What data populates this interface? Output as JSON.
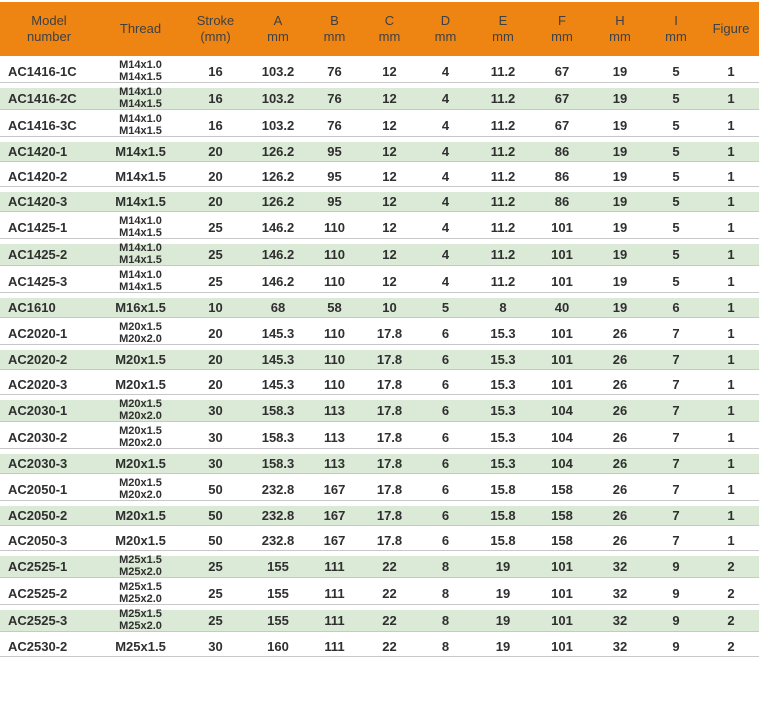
{
  "colors": {
    "header_bg": "#EE8512",
    "header_text": "#3e4044",
    "row_bg": "#ffffff",
    "row_alt_bg": "#dbead6",
    "body_text": "#2f2f2f",
    "separator": "#c8c8c8"
  },
  "table": {
    "columns": [
      {
        "key": "model",
        "label_lines": [
          "Model",
          "number"
        ]
      },
      {
        "key": "thread",
        "label_lines": [
          "Thread"
        ]
      },
      {
        "key": "stroke",
        "label_lines": [
          "Stroke",
          "(mm)"
        ]
      },
      {
        "key": "a",
        "label_lines": [
          "A",
          "mm"
        ]
      },
      {
        "key": "b",
        "label_lines": [
          "B",
          "mm"
        ]
      },
      {
        "key": "c",
        "label_lines": [
          "C",
          "mm"
        ]
      },
      {
        "key": "d",
        "label_lines": [
          "D",
          "mm"
        ]
      },
      {
        "key": "e",
        "label_lines": [
          "E",
          "mm"
        ]
      },
      {
        "key": "f",
        "label_lines": [
          "F",
          "mm"
        ]
      },
      {
        "key": "h",
        "label_lines": [
          "H",
          "mm"
        ]
      },
      {
        "key": "i",
        "label_lines": [
          "I",
          "mm"
        ]
      },
      {
        "key": "figure",
        "label_lines": [
          "Figure"
        ]
      }
    ],
    "rows": [
      {
        "model": "AC1416-1C",
        "thread": [
          "M14x1.0",
          "M14x1.5"
        ],
        "stroke": "16",
        "a": "103.2",
        "b": "76",
        "c": "12",
        "d": "4",
        "e": "11.2",
        "f": "67",
        "h": "19",
        "i": "5",
        "figure": "1"
      },
      {
        "model": "AC1416-2C",
        "thread": [
          "M14x1.0",
          "M14x1.5"
        ],
        "stroke": "16",
        "a": "103.2",
        "b": "76",
        "c": "12",
        "d": "4",
        "e": "11.2",
        "f": "67",
        "h": "19",
        "i": "5",
        "figure": "1"
      },
      {
        "model": "AC1416-3C",
        "thread": [
          "M14x1.0",
          "M14x1.5"
        ],
        "stroke": "16",
        "a": "103.2",
        "b": "76",
        "c": "12",
        "d": "4",
        "e": "11.2",
        "f": "67",
        "h": "19",
        "i": "5",
        "figure": "1"
      },
      {
        "model": "AC1420-1",
        "thread": [
          "M14x1.5"
        ],
        "stroke": "20",
        "a": "126.2",
        "b": "95",
        "c": "12",
        "d": "4",
        "e": "11.2",
        "f": "86",
        "h": "19",
        "i": "5",
        "figure": "1"
      },
      {
        "model": "AC1420-2",
        "thread": [
          "M14x1.5"
        ],
        "stroke": "20",
        "a": "126.2",
        "b": "95",
        "c": "12",
        "d": "4",
        "e": "11.2",
        "f": "86",
        "h": "19",
        "i": "5",
        "figure": "1"
      },
      {
        "model": "AC1420-3",
        "thread": [
          "M14x1.5"
        ],
        "stroke": "20",
        "a": "126.2",
        "b": "95",
        "c": "12",
        "d": "4",
        "e": "11.2",
        "f": "86",
        "h": "19",
        "i": "5",
        "figure": "1"
      },
      {
        "model": "AC1425-1",
        "thread": [
          "M14x1.0",
          "M14x1.5"
        ],
        "stroke": "25",
        "a": "146.2",
        "b": "110",
        "c": "12",
        "d": "4",
        "e": "11.2",
        "f": "101",
        "h": "19",
        "i": "5",
        "figure": "1"
      },
      {
        "model": "AC1425-2",
        "thread": [
          "M14x1.0",
          "M14x1.5"
        ],
        "stroke": "25",
        "a": "146.2",
        "b": "110",
        "c": "12",
        "d": "4",
        "e": "11.2",
        "f": "101",
        "h": "19",
        "i": "5",
        "figure": "1"
      },
      {
        "model": "AC1425-3",
        "thread": [
          "M14x1.0",
          "M14x1.5"
        ],
        "stroke": "25",
        "a": "146.2",
        "b": "110",
        "c": "12",
        "d": "4",
        "e": "11.2",
        "f": "101",
        "h": "19",
        "i": "5",
        "figure": "1"
      },
      {
        "model": "AC1610",
        "thread": [
          "M16x1.5"
        ],
        "stroke": "10",
        "a": "68",
        "b": "58",
        "c": "10",
        "d": "5",
        "e": "8",
        "f": "40",
        "h": "19",
        "i": "6",
        "figure": "1"
      },
      {
        "model": "AC2020-1",
        "thread": [
          "M20x1.5",
          "M20x2.0"
        ],
        "stroke": "20",
        "a": "145.3",
        "b": "110",
        "c": "17.8",
        "d": "6",
        "e": "15.3",
        "f": "101",
        "h": "26",
        "i": "7",
        "figure": "1"
      },
      {
        "model": "AC2020-2",
        "thread": [
          "M20x1.5"
        ],
        "stroke": "20",
        "a": "145.3",
        "b": "110",
        "c": "17.8",
        "d": "6",
        "e": "15.3",
        "f": "101",
        "h": "26",
        "i": "7",
        "figure": "1"
      },
      {
        "model": "AC2020-3",
        "thread": [
          "M20x1.5"
        ],
        "stroke": "20",
        "a": "145.3",
        "b": "110",
        "c": "17.8",
        "d": "6",
        "e": "15.3",
        "f": "101",
        "h": "26",
        "i": "7",
        "figure": "1"
      },
      {
        "model": "AC2030-1",
        "thread": [
          "M20x1.5",
          "M20x2.0"
        ],
        "stroke": "30",
        "a": "158.3",
        "b": "113",
        "c": "17.8",
        "d": "6",
        "e": "15.3",
        "f": "104",
        "h": "26",
        "i": "7",
        "figure": "1"
      },
      {
        "model": "AC2030-2",
        "thread": [
          "M20x1.5",
          "M20x2.0"
        ],
        "stroke": "30",
        "a": "158.3",
        "b": "113",
        "c": "17.8",
        "d": "6",
        "e": "15.3",
        "f": "104",
        "h": "26",
        "i": "7",
        "figure": "1"
      },
      {
        "model": "AC2030-3",
        "thread": [
          "M20x1.5"
        ],
        "stroke": "30",
        "a": "158.3",
        "b": "113",
        "c": "17.8",
        "d": "6",
        "e": "15.3",
        "f": "104",
        "h": "26",
        "i": "7",
        "figure": "1"
      },
      {
        "model": "AC2050-1",
        "thread": [
          "M20x1.5",
          "M20x2.0"
        ],
        "stroke": "50",
        "a": "232.8",
        "b": "167",
        "c": "17.8",
        "d": "6",
        "e": "15.8",
        "f": "158",
        "h": "26",
        "i": "7",
        "figure": "1"
      },
      {
        "model": "AC2050-2",
        "thread": [
          "M20x1.5"
        ],
        "stroke": "50",
        "a": "232.8",
        "b": "167",
        "c": "17.8",
        "d": "6",
        "e": "15.8",
        "f": "158",
        "h": "26",
        "i": "7",
        "figure": "1"
      },
      {
        "model": "AC2050-3",
        "thread": [
          "M20x1.5"
        ],
        "stroke": "50",
        "a": "232.8",
        "b": "167",
        "c": "17.8",
        "d": "6",
        "e": "15.8",
        "f": "158",
        "h": "26",
        "i": "7",
        "figure": "1"
      },
      {
        "model": "AC2525-1",
        "thread": [
          "M25x1.5",
          "M25x2.0"
        ],
        "stroke": "25",
        "a": "155",
        "b": "111",
        "c": "22",
        "d": "8",
        "e": "19",
        "f": "101",
        "h": "32",
        "i": "9",
        "figure": "2"
      },
      {
        "model": "AC2525-2",
        "thread": [
          "M25x1.5",
          "M25x2.0"
        ],
        "stroke": "25",
        "a": "155",
        "b": "111",
        "c": "22",
        "d": "8",
        "e": "19",
        "f": "101",
        "h": "32",
        "i": "9",
        "figure": "2"
      },
      {
        "model": "AC2525-3",
        "thread": [
          "M25x1.5",
          "M25x2.0"
        ],
        "stroke": "25",
        "a": "155",
        "b": "111",
        "c": "22",
        "d": "8",
        "e": "19",
        "f": "101",
        "h": "32",
        "i": "9",
        "figure": "2"
      },
      {
        "model": "AC2530-2",
        "thread": [
          "M25x1.5"
        ],
        "stroke": "30",
        "a": "160",
        "b": "111",
        "c": "22",
        "d": "8",
        "e": "19",
        "f": "101",
        "h": "32",
        "i": "9",
        "figure": "2"
      }
    ]
  }
}
